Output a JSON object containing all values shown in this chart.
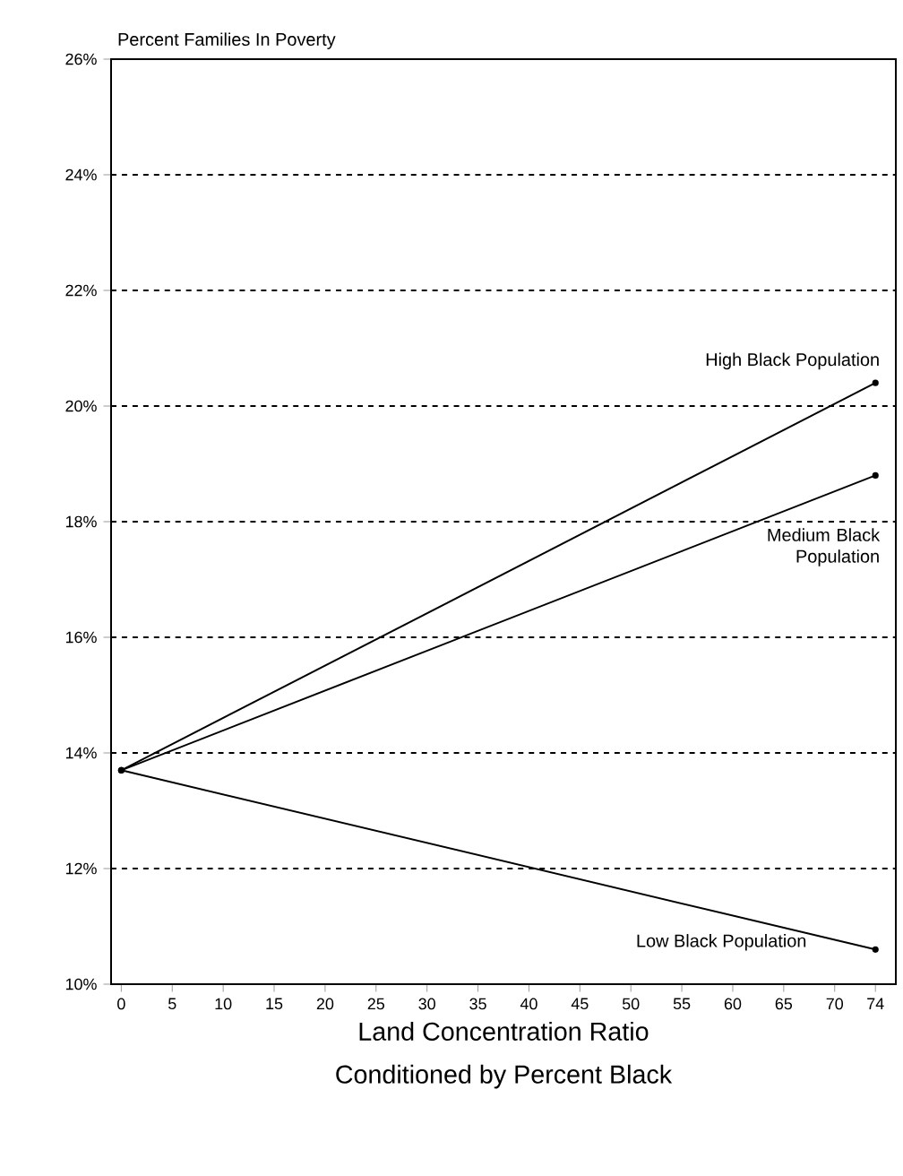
{
  "chart_data": {
    "type": "line",
    "ylabel": "Percent Families In Poverty",
    "xlabel": "Land Concentration Ratio",
    "annotations": [
      "Conditioned by Percent Black"
    ],
    "x": [
      0,
      74
    ],
    "series": [
      {
        "name": "High Black Population",
        "color": "#000000",
        "values": [
          13.7,
          20.4
        ]
      },
      {
        "name": "Medium Black Population",
        "color": "#000000",
        "values": [
          13.7,
          18.8
        ]
      },
      {
        "name": "Low Black Population",
        "color": "#000000",
        "values": [
          13.7,
          10.6
        ]
      }
    ],
    "xlim": [
      -1,
      76
    ],
    "ylim": [
      10,
      26
    ],
    "xticks": [
      0,
      5,
      10,
      15,
      20,
      25,
      30,
      35,
      40,
      45,
      50,
      55,
      60,
      65,
      70,
      74
    ],
    "yticks": [
      {
        "value": 10,
        "label": "10%"
      },
      {
        "value": 12,
        "label": "12%"
      },
      {
        "value": 14,
        "label": "14%"
      },
      {
        "value": 16,
        "label": "16%"
      },
      {
        "value": 18,
        "label": "18%"
      },
      {
        "value": 20,
        "label": "20%"
      },
      {
        "value": 22,
        "label": "22%"
      },
      {
        "value": 24,
        "label": "24%"
      },
      {
        "value": 26,
        "label": "26%"
      }
    ],
    "grid": "y",
    "marker": "circle",
    "line_style": "solid"
  }
}
